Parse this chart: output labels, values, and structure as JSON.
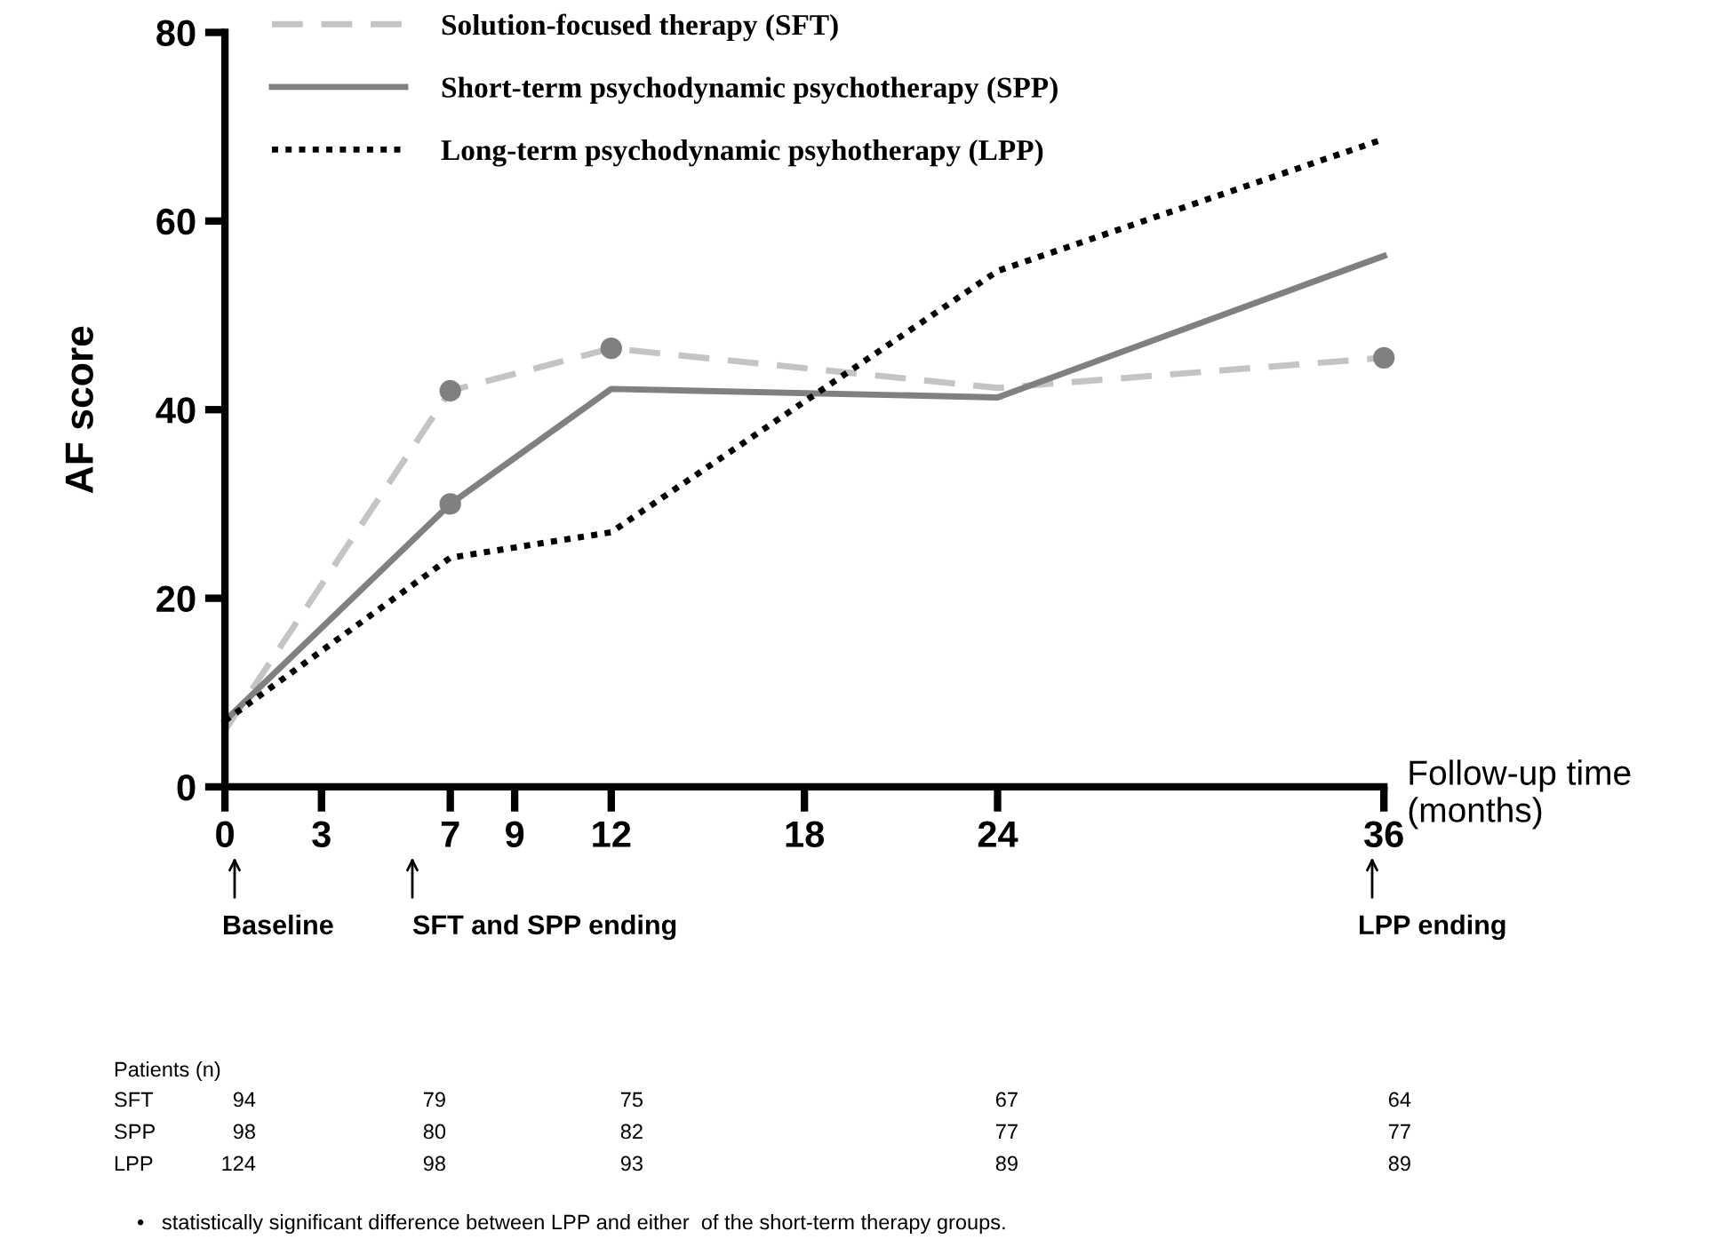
{
  "chart_data": {
    "type": "line",
    "ylabel": "AF score",
    "xlabel": "Follow-up time\n(months)",
    "x": [
      0,
      7,
      12,
      24,
      36
    ],
    "xlim": [
      0,
      36
    ],
    "xticks": [
      0,
      3,
      7,
      9,
      12,
      18,
      24,
      36
    ],
    "ylim": [
      0,
      80
    ],
    "yticks": [
      0,
      20,
      40,
      60,
      80
    ],
    "grid": false,
    "legend": "top",
    "marker": "none",
    "series": [
      {
        "name": "Solution-focused therapy (SFT)",
        "color": "#c4c4c4",
        "line_style": "dashed",
        "values": [
          6,
          42,
          46.5,
          42.3,
          45.5
        ]
      },
      {
        "name": "Short-term psychodynamic psychotherapy (SPP)",
        "color": "#808080",
        "line_style": "solid",
        "values": [
          7,
          30,
          42.2,
          41.3,
          56.3
        ]
      },
      {
        "name": "Long-term psychodynamic psyhotherapy (LPP)",
        "color": "#000000",
        "line_style": "dotted",
        "values": [
          7,
          24.3,
          27,
          54.7,
          68.7
        ]
      },
      {
        "type": "scatter",
        "marker": "circle",
        "color": "#808080",
        "x": [
          7,
          12,
          36,
          7
        ],
        "values": [
          42,
          46.5,
          45.5,
          30
        ]
      }
    ],
    "annotations": [
      "Baseline",
      "SFT and SPP ending",
      "LPP ending",
      "Patients (n)",
      "SFT",
      "SPP",
      "LPP",
      "94",
      "79",
      "75",
      "67",
      "64",
      "98",
      "80",
      "82",
      "77",
      "77",
      "124",
      "98",
      "93",
      "89",
      "89",
      "•   statistically significant difference between LPP and either  of the short-term therapy groups."
    ]
  }
}
